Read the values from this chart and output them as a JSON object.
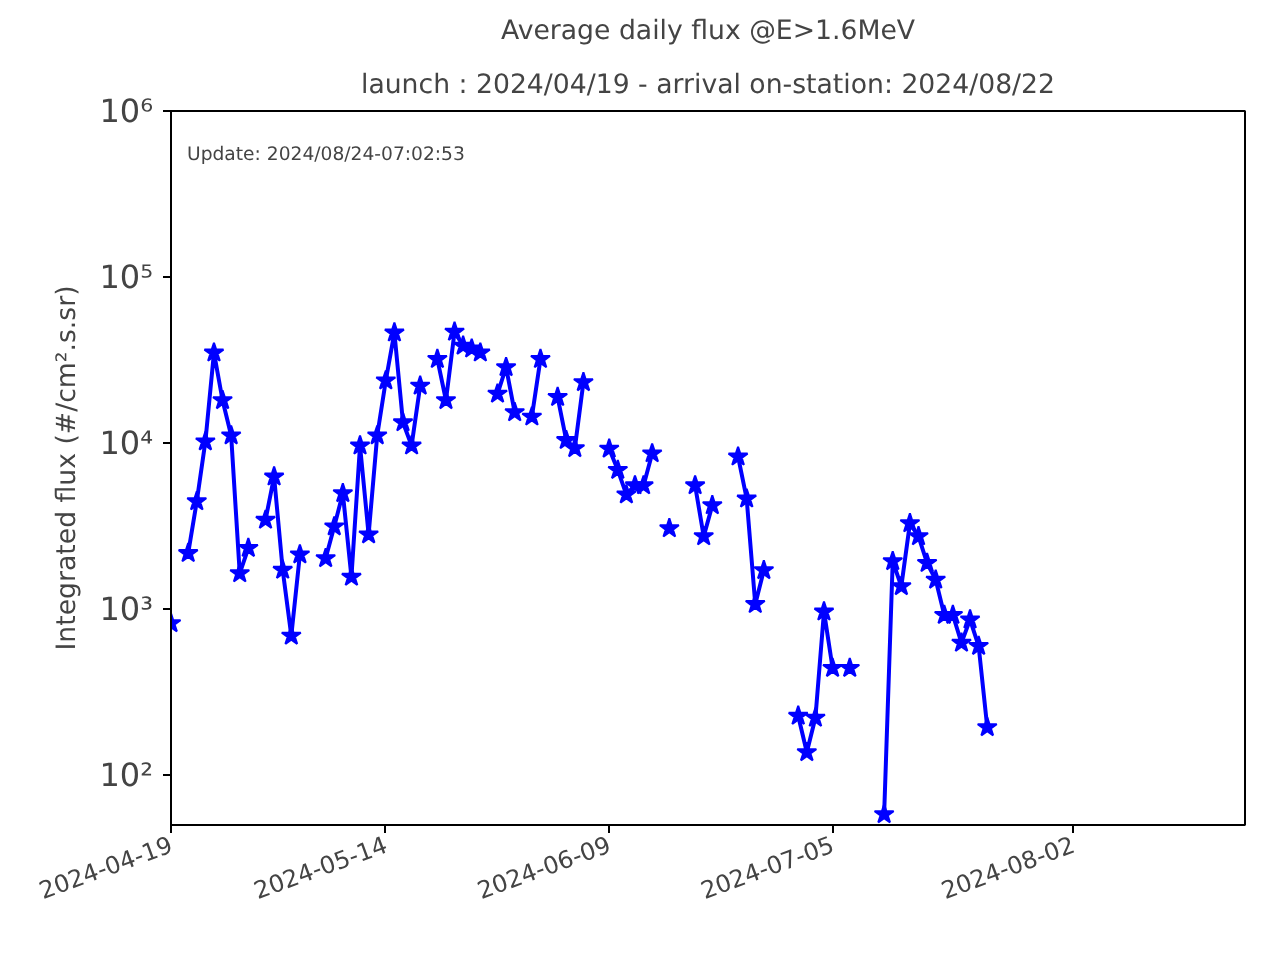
{
  "chart_data": {
    "type": "line",
    "title": "Average daily flux @E>1.6MeV",
    "subtitle": "launch : 2024/04/19 - arrival on-station: 2024/08/22",
    "ylabel": "Integrated flux (#/cm².s.sr)",
    "annotations": [
      "Update: 2024/08/24-07:02:53"
    ],
    "x": [
      "2024-04-19",
      "2024-04-20",
      "2024-04-21",
      "2024-04-22",
      "2024-04-23",
      "2024-04-24",
      "2024-04-25",
      "2024-04-26",
      "2024-04-27",
      "2024-04-28",
      "2024-04-29",
      "2024-04-30",
      "2024-05-01",
      "2024-05-02",
      "2024-05-03",
      "2024-05-04",
      "2024-05-05",
      "2024-05-06",
      "2024-05-07",
      "2024-05-08",
      "2024-05-09",
      "2024-05-10",
      "2024-05-11",
      "2024-05-12",
      "2024-05-13",
      "2024-05-14",
      "2024-05-15",
      "2024-05-16",
      "2024-05-17",
      "2024-05-18",
      "2024-05-19",
      "2024-05-20",
      "2024-05-21",
      "2024-05-22",
      "2024-05-23",
      "2024-05-24",
      "2024-05-25",
      "2024-05-26",
      "2024-05-27",
      "2024-05-28",
      "2024-05-29",
      "2024-05-30",
      "2024-05-31",
      "2024-06-01",
      "2024-06-02",
      "2024-06-03",
      "2024-06-04",
      "2024-06-05",
      "2024-06-06",
      "2024-06-07",
      "2024-06-08",
      "2024-06-09",
      "2024-06-10",
      "2024-06-11",
      "2024-06-12",
      "2024-06-13",
      "2024-06-14",
      "2024-06-15",
      "2024-06-16",
      "2024-06-17",
      "2024-06-18",
      "2024-06-19",
      "2024-06-20",
      "2024-06-21",
      "2024-06-22",
      "2024-06-23",
      "2024-06-24",
      "2024-06-25",
      "2024-06-26",
      "2024-06-27",
      "2024-06-28",
      "2024-06-29",
      "2024-06-30",
      "2024-07-01",
      "2024-07-02",
      "2024-07-03",
      "2024-07-04",
      "2024-07-05",
      "2024-07-06",
      "2024-07-07",
      "2024-07-08",
      "2024-07-09",
      "2024-07-10",
      "2024-07-11",
      "2024-07-12",
      "2024-07-13",
      "2024-07-14",
      "2024-07-15",
      "2024-07-16",
      "2024-07-17",
      "2024-07-18",
      "2024-07-19",
      "2024-07-20",
      "2024-07-21",
      "2024-07-22",
      "2024-07-23"
    ],
    "series": [
      {
        "color": "#0000ff",
        "values": [
          820,
          null,
          2170,
          4450,
          10200,
          35000,
          18100,
          11100,
          1640,
          2330,
          null,
          3440,
          6270,
          1720,
          690,
          2130,
          null,
          null,
          2020,
          3140,
          4980,
          1560,
          9640,
          2810,
          11100,
          23800,
          46200,
          13300,
          9640,
          22100,
          null,
          32000,
          18100,
          46700,
          38500,
          37000,
          35000,
          null,
          19800,
          28600,
          15300,
          null,
          14400,
          32000,
          null,
          18900,
          10400,
          9300,
          23200,
          null,
          null,
          9230,
          6870,
          4890,
          5550,
          5550,
          8650,
          null,
          3060,
          null,
          null,
          5550,
          2740,
          4210,
          null,
          null,
          8270,
          4620,
          1070,
          1710,
          null,
          null,
          null,
          227,
          137,
          221,
          964,
          441,
          null,
          441,
          null,
          null,
          null,
          58,
          1940,
          1370,
          3280,
          2740,
          1890,
          1500,
          920,
          920,
          625,
          863,
          598,
          194
        ]
      }
    ],
    "log": "y",
    "marker": "star",
    "line_style": "solid",
    "grid": false,
    "xlim": [
      "2024-04-19",
      "2024-08-22"
    ],
    "xticks": [
      "2024-04-19",
      "2024-05-14",
      "2024-06-09",
      "2024-07-05",
      "2024-08-02"
    ],
    "ylim": [
      50,
      1000000
    ],
    "yticks": [
      {
        "value": 100,
        "label": "10²"
      },
      {
        "value": 1000,
        "label": "10³"
      },
      {
        "value": 10000,
        "label": "10⁴"
      },
      {
        "value": 100000,
        "label": "10⁵"
      },
      {
        "value": 1000000,
        "label": "10⁶"
      }
    ]
  }
}
